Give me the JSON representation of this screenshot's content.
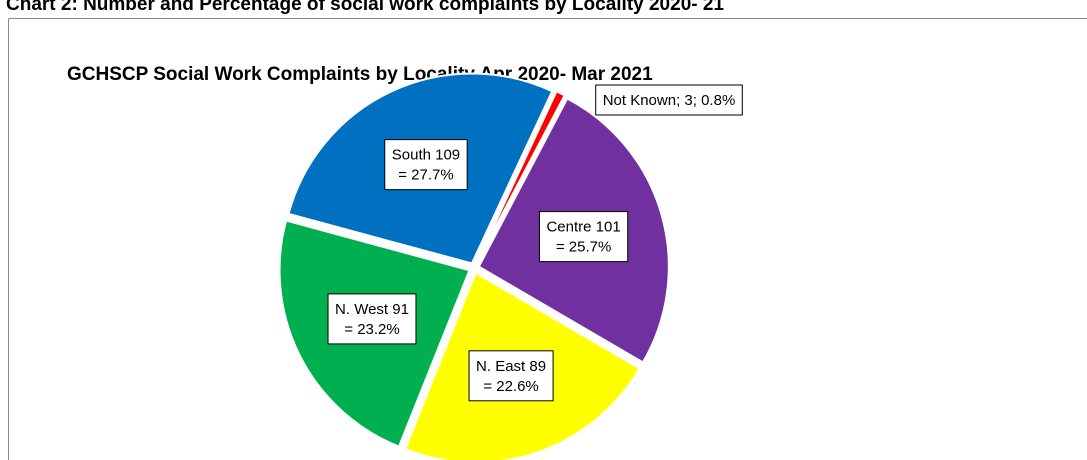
{
  "heading": "Chart 2: Number and Percentage of social work complaints by Locality 2020- 21",
  "chart_data": {
    "type": "pie",
    "title": "GCHSCP Social Work Complaints by Locality  Apr 2020- Mar 2021",
    "values": [
      3,
      101,
      89,
      91,
      109
    ],
    "value_labels": [
      [
        "Not Known; 3; 0.8%"
      ],
      [
        "Centre 101",
        "= 25.7%"
      ],
      [
        "N. East 89",
        "= 22.6%"
      ],
      [
        "N. West 91",
        "= 23.2%"
      ],
      [
        "South 109",
        "= 27.7%"
      ]
    ],
    "colors": [
      "#ff0000",
      "#7030a0",
      "#ffff00",
      "#00b050",
      "#0070c0"
    ]
  }
}
